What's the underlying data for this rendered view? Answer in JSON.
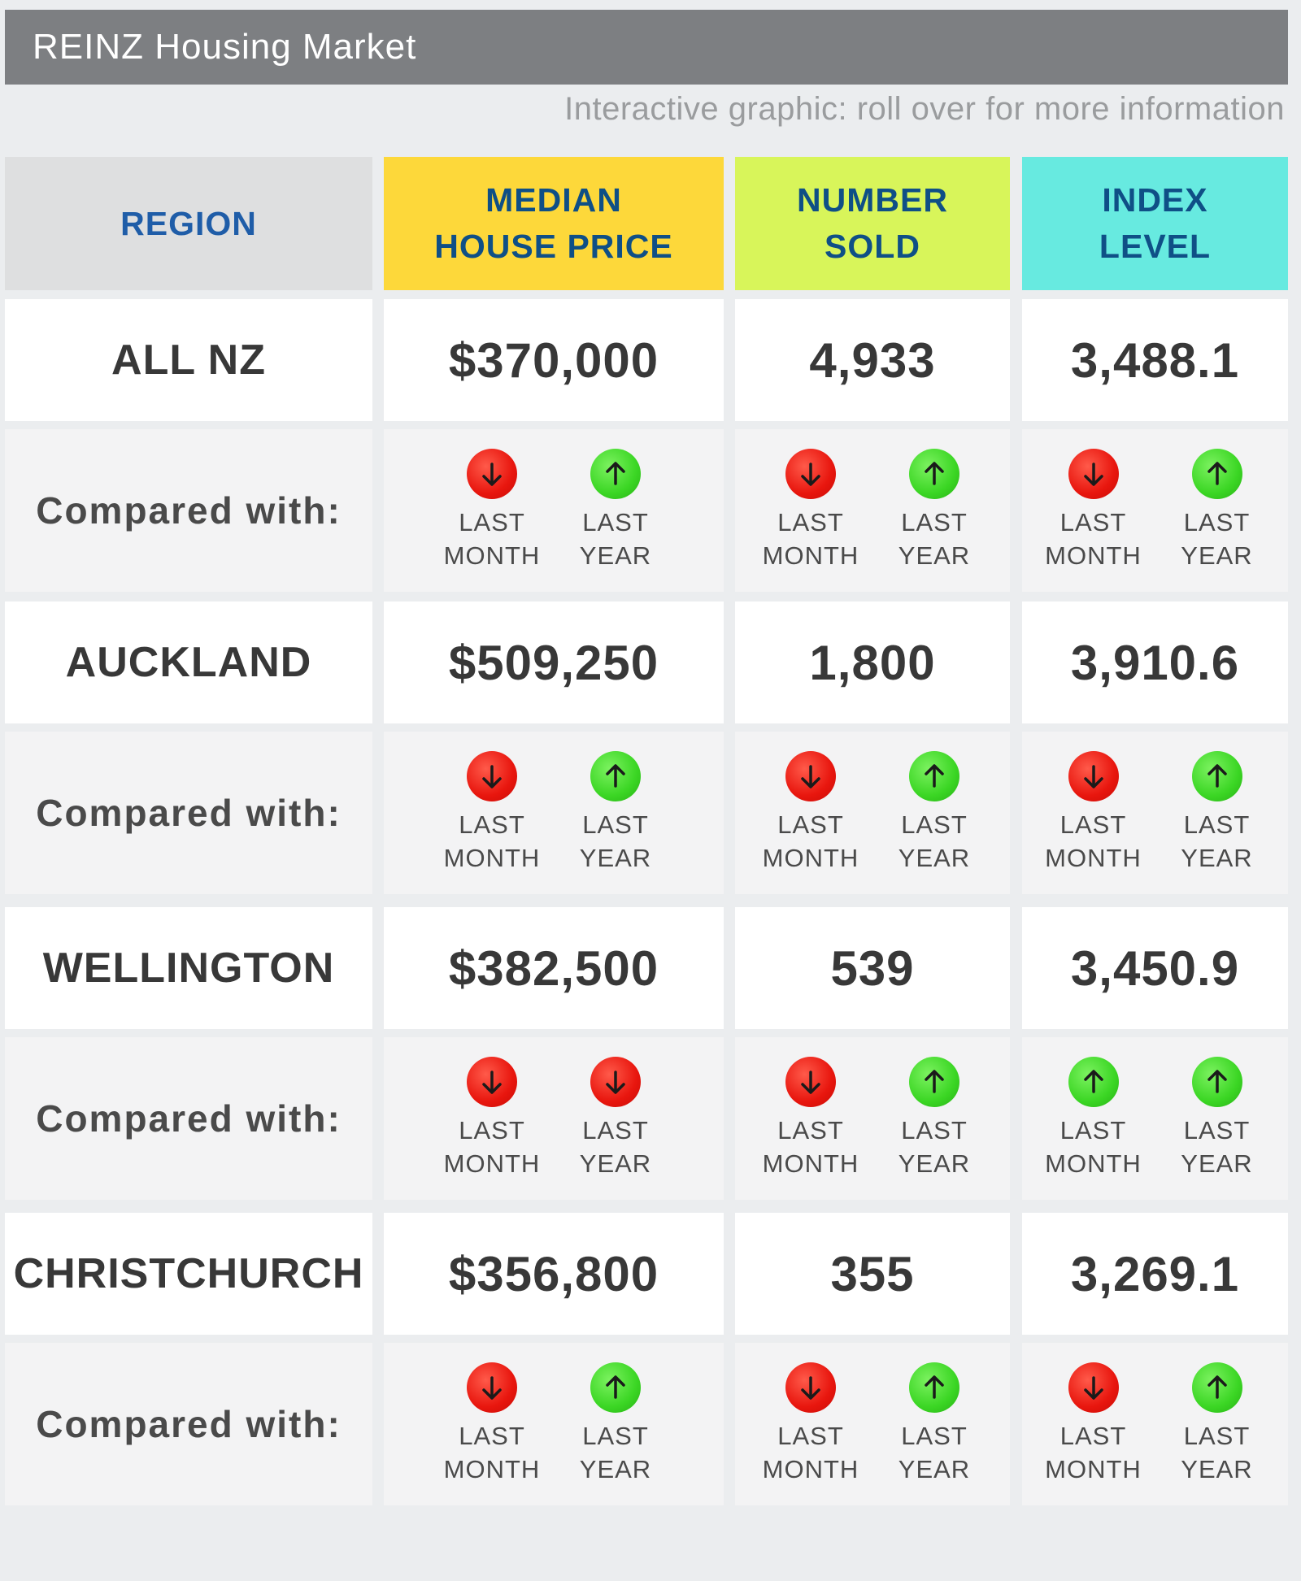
{
  "title": "REINZ Housing Market",
  "subtitle": "Interactive graphic: roll over for more information",
  "headers": {
    "region": "REGION",
    "price": "MEDIAN\nHOUSE PRICE",
    "sold": "NUMBER\nSOLD",
    "index": "INDEX\nLEVEL"
  },
  "colors": {
    "region_header": "#dedfe0",
    "price_header": "#fdd83a",
    "sold_header": "#d8f55a",
    "index_header": "#67eae0",
    "down": "#e8160e",
    "up": "#3bd624"
  },
  "labels": {
    "compared": "Compared with:",
    "last_month": "LAST\nMONTH",
    "last_year": "LAST\nYEAR"
  },
  "rows": [
    {
      "region": "ALL NZ",
      "price": "$370,000",
      "sold": "4,933",
      "index": "3,488.1",
      "price_trend": [
        "down",
        "up"
      ],
      "sold_trend": [
        "down",
        "up"
      ],
      "index_trend": [
        "down",
        "up"
      ]
    },
    {
      "region": "AUCKLAND",
      "price": "$509,250",
      "sold": "1,800",
      "index": "3,910.6",
      "price_trend": [
        "down",
        "up"
      ],
      "sold_trend": [
        "down",
        "up"
      ],
      "index_trend": [
        "down",
        "up"
      ]
    },
    {
      "region": "WELLINGTON",
      "price": "$382,500",
      "sold": "539",
      "index": "3,450.9",
      "price_trend": [
        "down",
        "down"
      ],
      "sold_trend": [
        "down",
        "up"
      ],
      "index_trend": [
        "up",
        "up"
      ]
    },
    {
      "region": "CHRISTCHURCH",
      "price": "$356,800",
      "sold": "355",
      "index": "3,269.1",
      "price_trend": [
        "down",
        "up"
      ],
      "sold_trend": [
        "down",
        "up"
      ],
      "index_trend": [
        "down",
        "up"
      ]
    }
  ]
}
